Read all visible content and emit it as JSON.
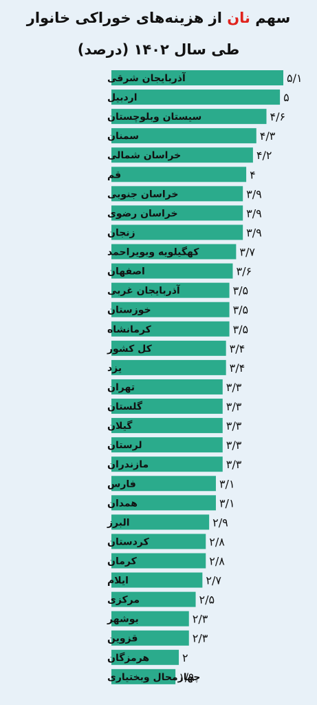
{
  "title": {
    "part1": "سهم ",
    "highlight": "نان",
    "part2": " از هزینه‌های خوراکی خانوار",
    "line2": "طی سال ۱۴۰۲ (درصد)"
  },
  "colors": {
    "bar": "#2bab8c",
    "accent": "#e0231d",
    "background": "#e8f1f8"
  },
  "chart_data": {
    "type": "bar",
    "orientation": "horizontal",
    "title": "سهم نان از هزینه‌های خوراکی خانوار طی سال ۱۴۰۲ (درصد)",
    "categories": [
      "آذربایجان شرقی",
      "اردبیل",
      "سیستان وبلوچستان",
      "سمنان",
      "خراسان شمالی",
      "قم",
      "خراسان جنوبی",
      "خراسان رضوی",
      "زنجان",
      "کهگیلویه وبویراحمد",
      "اصفهان",
      "آذربایجان غربی",
      "خوزستان",
      "کرمانشاه",
      "کل کشور",
      "یزد",
      "تهران",
      "گلستان",
      "گیلان",
      "لرستان",
      "مازندران",
      "فارس",
      "همدان",
      "البرز",
      "کردستان",
      "کرمان",
      "ایلام",
      "مرکزی",
      "بوشهر",
      "قزوین",
      "هرمزگان",
      "چهارمحال وبختیاری"
    ],
    "values": [
      5.1,
      5,
      4.6,
      4.3,
      4.2,
      4,
      3.9,
      3.9,
      3.9,
      3.7,
      3.6,
      3.5,
      3.5,
      3.5,
      3.4,
      3.4,
      3.3,
      3.3,
      3.3,
      3.3,
      3.3,
      3.1,
      3.1,
      2.9,
      2.8,
      2.8,
      2.7,
      2.5,
      2.3,
      2.3,
      2,
      1.9
    ],
    "value_labels": [
      "۵/۱",
      "۵",
      "۴/۶",
      "۴/۳",
      "۴/۲",
      "۴",
      "۳/۹",
      "۳/۹",
      "۳/۹",
      "۳/۷",
      "۳/۶",
      "۳/۵",
      "۳/۵",
      "۳/۵",
      "۳/۴",
      "۳/۴",
      "۳/۳",
      "۳/۳",
      "۳/۳",
      "۳/۳",
      "۳/۳",
      "۳/۱",
      "۳/۱",
      "۲/۹",
      "۲/۸",
      "۲/۸",
      "۲/۷",
      "۲/۵",
      "۲/۳",
      "۲/۳",
      "۲",
      "۱/۹"
    ],
    "xlim": [
      0,
      5.1
    ]
  }
}
